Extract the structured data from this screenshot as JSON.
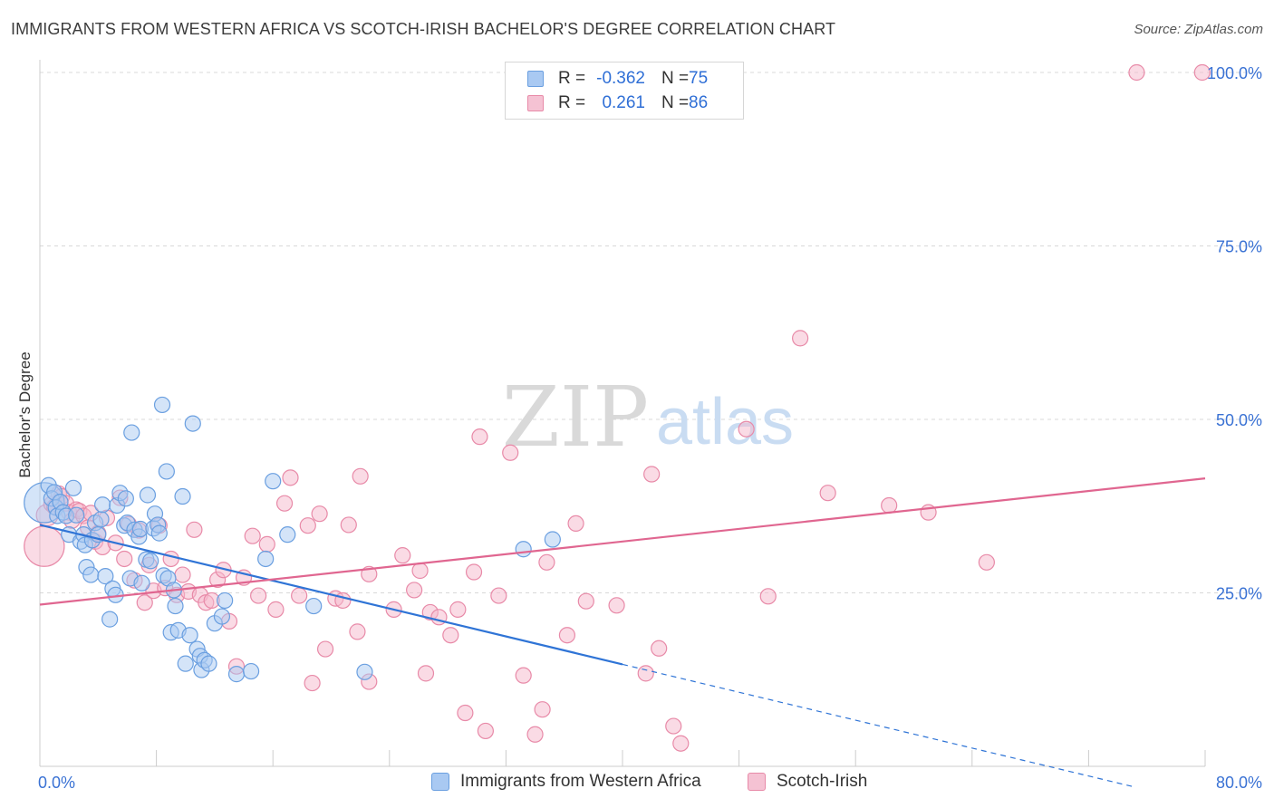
{
  "title": "IMMIGRANTS FROM WESTERN AFRICA VS SCOTCH-IRISH BACHELOR'S DEGREE CORRELATION CHART",
  "source": "Source: ZipAtlas.com",
  "watermark": {
    "zip": "ZIP",
    "atlas": "atlas"
  },
  "legend_top": {
    "rows": [
      {
        "r_label": "R =",
        "r_value": "-0.362",
        "n_label": "N =",
        "n_value": "75"
      },
      {
        "r_label": "R =",
        "r_value": "0.261",
        "n_label": "N =",
        "n_value": "86"
      }
    ]
  },
  "legend_bottom": {
    "items": [
      {
        "label": "Immigrants from Western Africa"
      },
      {
        "label": "Scotch-Irish"
      }
    ]
  },
  "colors": {
    "blue_fill": "#a9c9f2",
    "blue_stroke": "#6a9fe0",
    "blue_line": "#2f74d6",
    "pink_fill": "#f5b8cb",
    "pink_stroke": "#e88aa8",
    "pink_line": "#e06690",
    "grid": "#d8d8d8",
    "tick_text": "#3a72d4"
  },
  "chart_data": {
    "type": "scatter",
    "title": "IMMIGRANTS FROM WESTERN AFRICA VS SCOTCH-IRISH BACHELOR'S DEGREE CORRELATION CHART",
    "xlabel": "",
    "ylabel": "Bachelor's Degree",
    "xlim": [
      0,
      80
    ],
    "ylim": [
      0,
      102
    ],
    "x_tick_labels": [
      "0.0%",
      "80.0%"
    ],
    "y_ticks": [
      {
        "value": 25,
        "label": "25.0%"
      },
      {
        "value": 50,
        "label": "50.0%"
      },
      {
        "value": 75,
        "label": "75.0%"
      },
      {
        "value": 100,
        "label": "100.0%"
      }
    ],
    "series": [
      {
        "name": "Immigrants from Western Africa",
        "color": "blue",
        "R": -0.362,
        "N": 75,
        "trend": {
          "x0": 0,
          "y0": 34.8,
          "x1": 40,
          "y1": 14.7,
          "dash_to_x": 75,
          "dash_to_y": -2.9
        },
        "points": [
          [
            0.3,
            38,
            2.6
          ],
          [
            0.6,
            40.5,
            1
          ],
          [
            0.8,
            38.6,
            1
          ],
          [
            1.0,
            39.5,
            1
          ],
          [
            1.1,
            37.3,
            1
          ],
          [
            1.2,
            36.1,
            1
          ],
          [
            1.4,
            38.1,
            1
          ],
          [
            1.6,
            36.6,
            1
          ],
          [
            1.8,
            36.1,
            1
          ],
          [
            2.0,
            33.4,
            1
          ],
          [
            2.3,
            40.1,
            1
          ],
          [
            2.5,
            36.2,
            1
          ],
          [
            2.8,
            32.4,
            1
          ],
          [
            3.0,
            33.4,
            1
          ],
          [
            3.1,
            31.9,
            1
          ],
          [
            3.2,
            28.7,
            1
          ],
          [
            3.5,
            27.6,
            1
          ],
          [
            3.6,
            32.6,
            1
          ],
          [
            3.8,
            35.1,
            1
          ],
          [
            4.0,
            33.4,
            1
          ],
          [
            4.2,
            35.6,
            1
          ],
          [
            4.3,
            37.7,
            1
          ],
          [
            4.5,
            27.4,
            1
          ],
          [
            4.8,
            21.2,
            1
          ],
          [
            5.0,
            25.6,
            1
          ],
          [
            5.2,
            24.7,
            1
          ],
          [
            5.3,
            37.6,
            1
          ],
          [
            5.5,
            39.4,
            1
          ],
          [
            5.8,
            34.7,
            1
          ],
          [
            5.9,
            38.6,
            1
          ],
          [
            6.0,
            35.1,
            1
          ],
          [
            6.2,
            27.1,
            1
          ],
          [
            6.3,
            48.1,
            1
          ],
          [
            6.5,
            34.1,
            1
          ],
          [
            6.8,
            33.1,
            1
          ],
          [
            6.9,
            34.2,
            1
          ],
          [
            7.0,
            26.4,
            1
          ],
          [
            7.3,
            29.8,
            1
          ],
          [
            7.4,
            39.1,
            1
          ],
          [
            7.6,
            29.6,
            1
          ],
          [
            7.8,
            34.3,
            1
          ],
          [
            7.9,
            36.4,
            1
          ],
          [
            8.1,
            34.8,
            1
          ],
          [
            8.2,
            33.6,
            1
          ],
          [
            8.4,
            52.1,
            1
          ],
          [
            8.5,
            27.5,
            1
          ],
          [
            8.7,
            42.5,
            1
          ],
          [
            8.8,
            27.1,
            1
          ],
          [
            9.0,
            19.3,
            1
          ],
          [
            9.2,
            25.4,
            1
          ],
          [
            9.3,
            23.1,
            1
          ],
          [
            9.5,
            19.6,
            1
          ],
          [
            9.8,
            38.9,
            1
          ],
          [
            10.0,
            14.8,
            1
          ],
          [
            10.3,
            18.9,
            1
          ],
          [
            10.5,
            49.4,
            1
          ],
          [
            10.8,
            16.9,
            1
          ],
          [
            11.0,
            15.9,
            1
          ],
          [
            11.1,
            13.9,
            1
          ],
          [
            11.3,
            15.3,
            1
          ],
          [
            11.6,
            14.8,
            1
          ],
          [
            12.0,
            20.6,
            1
          ],
          [
            12.5,
            21.6,
            1
          ],
          [
            12.7,
            23.9,
            1
          ],
          [
            13.5,
            13.3,
            1
          ],
          [
            14.5,
            13.7,
            1
          ],
          [
            15.5,
            29.9,
            1
          ],
          [
            16.0,
            41.1,
            1
          ],
          [
            17.0,
            33.4,
            1
          ],
          [
            18.8,
            23.1,
            1
          ],
          [
            22.3,
            13.6,
            1
          ],
          [
            33.2,
            31.3,
            1
          ],
          [
            35.2,
            32.7,
            1
          ]
        ]
      },
      {
        "name": "Scotch-Irish",
        "color": "pink",
        "R": 0.261,
        "N": 86,
        "trend": {
          "x0": 0,
          "y0": 23.3,
          "x1": 80,
          "y1": 41.5
        },
        "points": [
          [
            0.3,
            31.7,
            2.6
          ],
          [
            0.5,
            36.2,
            1.4
          ],
          [
            0.8,
            37.8,
            1
          ],
          [
            1.0,
            37.4,
            1
          ],
          [
            1.3,
            39.3,
            1
          ],
          [
            1.5,
            38.9,
            1
          ],
          [
            1.8,
            37.9,
            1
          ],
          [
            2.0,
            36.6,
            1
          ],
          [
            2.2,
            35.4,
            1
          ],
          [
            2.5,
            37.0,
            1
          ],
          [
            2.7,
            36.8,
            1
          ],
          [
            3.0,
            36.1,
            1
          ],
          [
            3.3,
            34.4,
            1
          ],
          [
            3.5,
            36.5,
            1
          ],
          [
            3.8,
            32.4,
            1
          ],
          [
            4.0,
            33.6,
            1
          ],
          [
            4.3,
            31.6,
            1
          ],
          [
            4.6,
            35.8,
            1
          ],
          [
            5.2,
            32.2,
            1
          ],
          [
            5.5,
            38.7,
            1
          ],
          [
            5.8,
            29.9,
            1
          ],
          [
            6.1,
            34.9,
            1
          ],
          [
            6.5,
            26.8,
            1
          ],
          [
            6.8,
            34.0,
            1
          ],
          [
            7.2,
            23.6,
            1
          ],
          [
            7.5,
            29.0,
            1
          ],
          [
            7.8,
            25.3,
            1
          ],
          [
            8.2,
            34.7,
            1
          ],
          [
            8.6,
            25.7,
            1
          ],
          [
            9.0,
            29.9,
            1
          ],
          [
            9.4,
            24.7,
            1
          ],
          [
            9.8,
            27.6,
            1
          ],
          [
            10.2,
            25.2,
            1
          ],
          [
            10.6,
            34.1,
            1
          ],
          [
            11.0,
            24.7,
            1
          ],
          [
            11.4,
            23.6,
            1
          ],
          [
            11.8,
            23.9,
            1
          ],
          [
            12.2,
            26.9,
            1
          ],
          [
            12.6,
            28.3,
            1
          ],
          [
            13.0,
            20.9,
            1
          ],
          [
            13.5,
            14.4,
            1
          ],
          [
            14.0,
            27.2,
            1
          ],
          [
            14.6,
            33.2,
            1
          ],
          [
            15.0,
            24.6,
            1
          ],
          [
            15.6,
            32.0,
            1
          ],
          [
            16.2,
            22.6,
            1
          ],
          [
            16.8,
            37.9,
            1
          ],
          [
            17.2,
            41.6,
            1
          ],
          [
            17.8,
            24.6,
            1
          ],
          [
            18.4,
            34.7,
            1
          ],
          [
            18.7,
            12.0,
            1
          ],
          [
            19.2,
            36.4,
            1
          ],
          [
            19.6,
            16.9,
            1
          ],
          [
            20.3,
            24.2,
            1
          ],
          [
            20.8,
            23.9,
            1
          ],
          [
            21.2,
            34.8,
            1
          ],
          [
            21.8,
            19.4,
            1
          ],
          [
            22.6,
            12.2,
            1
          ],
          [
            22.0,
            41.8,
            1
          ],
          [
            22.6,
            27.7,
            1
          ],
          [
            24.3,
            22.6,
            1
          ],
          [
            24.9,
            30.4,
            1
          ],
          [
            25.7,
            25.4,
            1
          ],
          [
            26.1,
            28.2,
            1
          ],
          [
            26.5,
            13.4,
            1
          ],
          [
            26.8,
            22.2,
            1
          ],
          [
            27.4,
            21.5,
            1
          ],
          [
            28.2,
            18.9,
            1
          ],
          [
            28.7,
            22.6,
            1
          ],
          [
            29.2,
            7.7,
            1
          ],
          [
            29.8,
            28.0,
            1
          ],
          [
            30.2,
            47.5,
            1
          ],
          [
            30.6,
            5.1,
            1
          ],
          [
            31.5,
            24.6,
            1
          ],
          [
            32.3,
            45.2,
            1
          ],
          [
            33.2,
            13.1,
            1
          ],
          [
            34.0,
            4.6,
            1
          ],
          [
            34.5,
            8.2,
            1
          ],
          [
            34.8,
            29.4,
            1
          ],
          [
            36.2,
            18.9,
            1
          ],
          [
            36.8,
            35.0,
            1
          ],
          [
            37.5,
            23.8,
            1
          ],
          [
            39.6,
            23.2,
            1
          ],
          [
            41.6,
            13.4,
            1
          ],
          [
            42.5,
            17.0,
            1
          ],
          [
            43.5,
            5.8,
            1
          ],
          [
            44.0,
            3.3,
            1
          ],
          [
            48.5,
            48.6,
            1
          ],
          [
            50.0,
            24.5,
            1
          ],
          [
            52.2,
            61.7,
            1
          ],
          [
            54.1,
            39.4,
            1
          ],
          [
            58.3,
            37.6,
            1
          ],
          [
            61.0,
            36.6,
            1
          ],
          [
            65.0,
            29.4,
            1
          ],
          [
            75.3,
            100.0,
            1
          ],
          [
            79.8,
            100.0,
            1
          ],
          [
            42.0,
            42.1,
            1
          ]
        ]
      }
    ]
  }
}
